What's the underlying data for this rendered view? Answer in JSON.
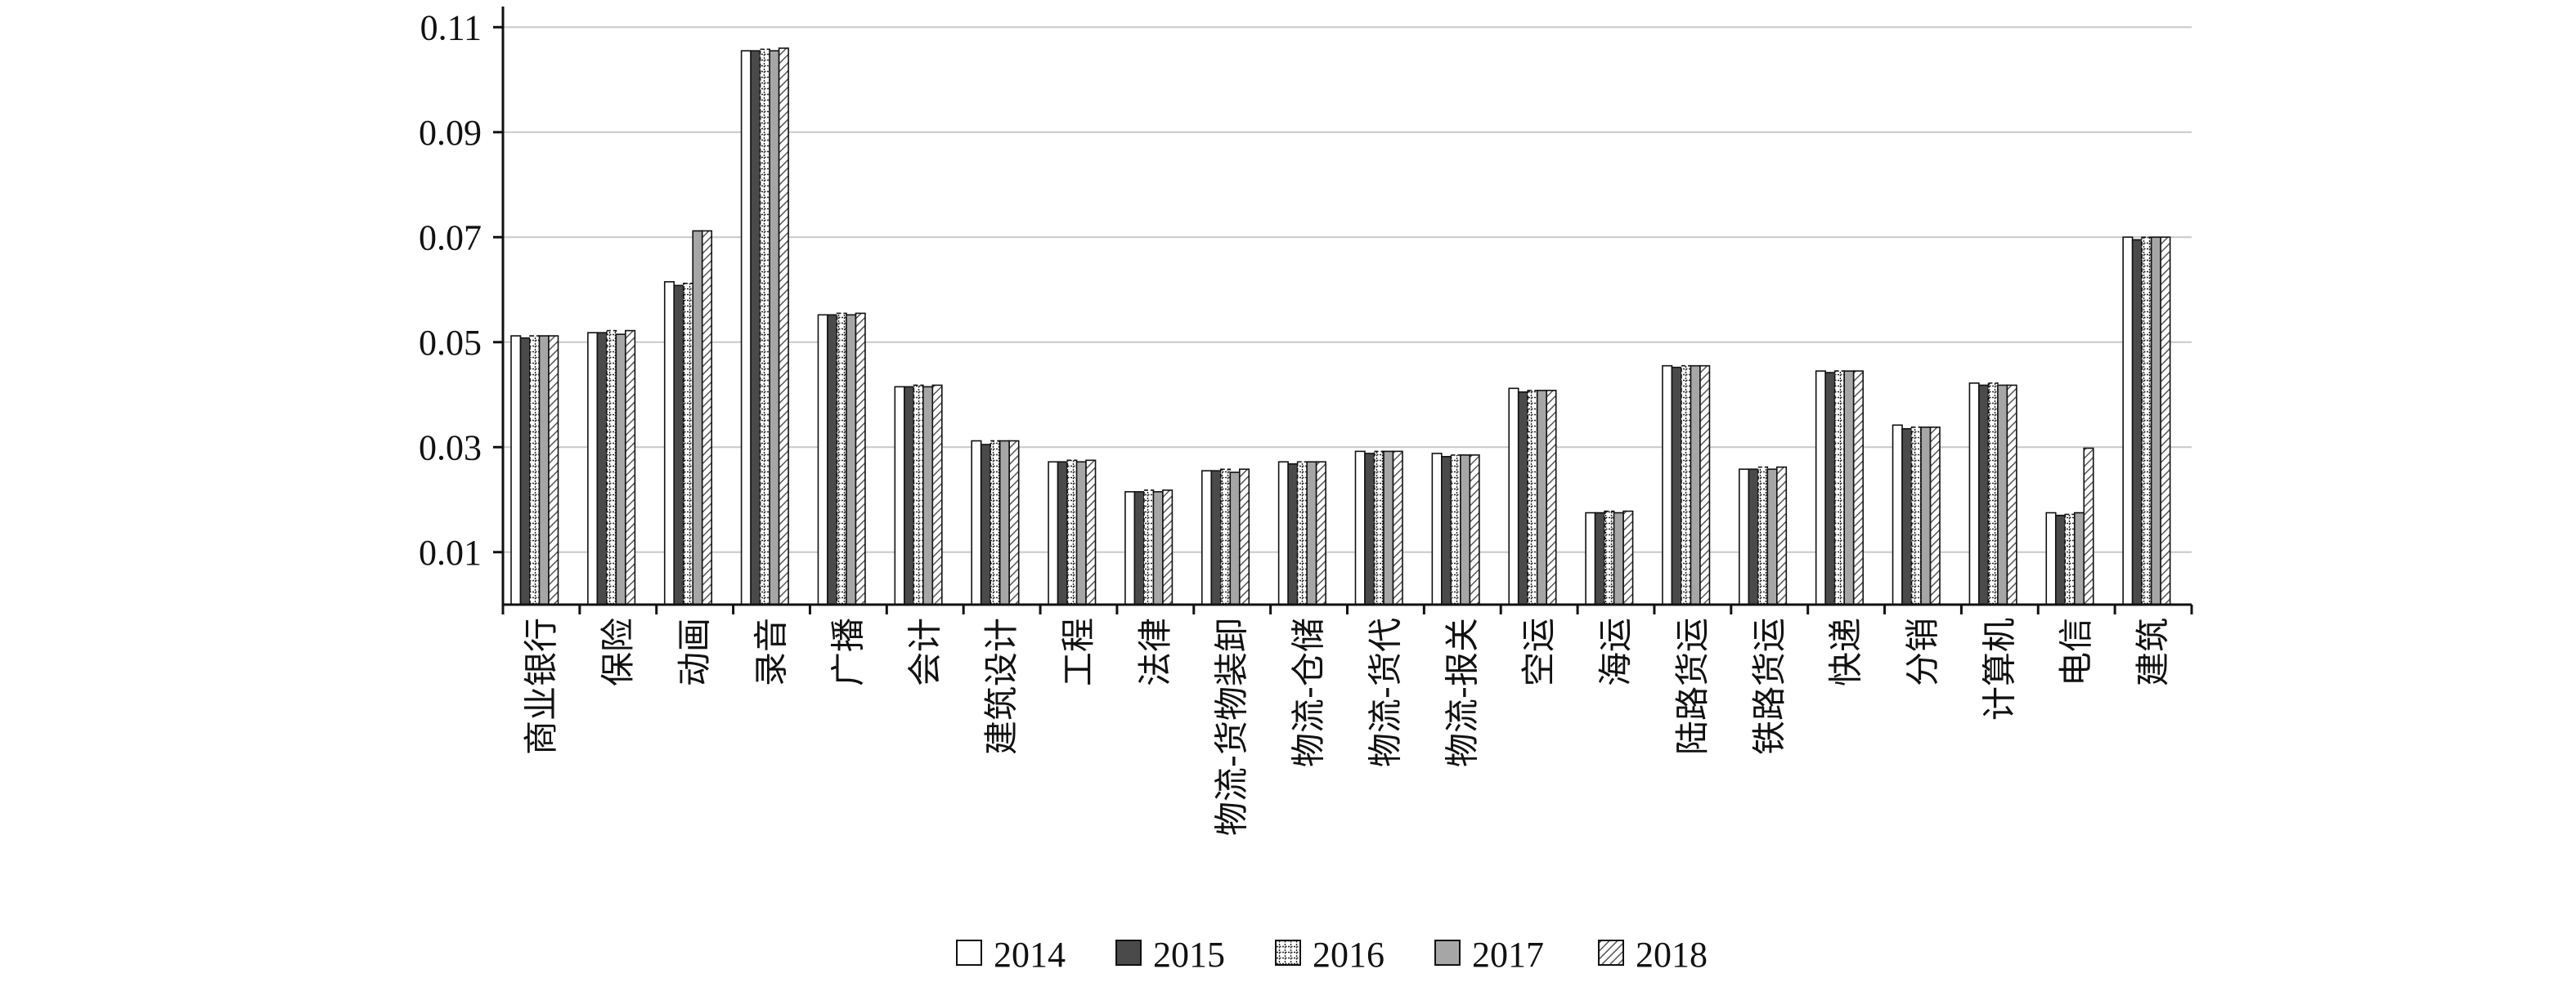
{
  "chart_data": {
    "type": "bar",
    "title": "",
    "xlabel": "",
    "ylabel": "",
    "ylim": [
      0,
      0.113
    ],
    "yticks": [
      "0.01",
      "0.03",
      "0.05",
      "0.07",
      "0.09",
      "0.11"
    ],
    "ytick_values": [
      0.01,
      0.03,
      0.05,
      0.07,
      0.09,
      0.11
    ],
    "grid": "horizontal",
    "legend_position": "bottom",
    "categories": [
      "商业银行",
      "保险",
      "动画",
      "录音",
      "广播",
      "会计",
      "建筑设计",
      "工程",
      "法律",
      "物流-货物装卸",
      "物流-仓储",
      "物流-货代",
      "物流-报关",
      "空运",
      "海运",
      "陆路货运",
      "铁路货运",
      "快递",
      "分销",
      "计算机",
      "电信",
      "建筑"
    ],
    "series": [
      {
        "name": "2014",
        "values": [
          0.0512,
          0.0518,
          0.0615,
          0.1055,
          0.0552,
          0.0415,
          0.0312,
          0.0272,
          0.0215,
          0.0255,
          0.0272,
          0.0292,
          0.0288,
          0.0412,
          0.0175,
          0.0455,
          0.0258,
          0.0445,
          0.0342,
          0.0422,
          0.0175,
          0.07
        ]
      },
      {
        "name": "2015",
        "values": [
          0.0508,
          0.0518,
          0.0608,
          0.1055,
          0.0552,
          0.0415,
          0.0305,
          0.0272,
          0.0215,
          0.0255,
          0.0268,
          0.0288,
          0.0282,
          0.0405,
          0.0175,
          0.0452,
          0.0258,
          0.0442,
          0.0335,
          0.0418,
          0.017,
          0.0695
        ]
      },
      {
        "name": "2016",
        "values": [
          0.0512,
          0.0522,
          0.0612,
          0.1058,
          0.0555,
          0.0418,
          0.0312,
          0.0275,
          0.0218,
          0.0258,
          0.0272,
          0.0292,
          0.0285,
          0.0408,
          0.0178,
          0.0455,
          0.0262,
          0.0445,
          0.0338,
          0.0422,
          0.0172,
          0.07
        ]
      },
      {
        "name": "2017",
        "values": [
          0.0512,
          0.0515,
          0.0712,
          0.1055,
          0.0552,
          0.0415,
          0.0312,
          0.0272,
          0.0215,
          0.0252,
          0.0272,
          0.0292,
          0.0285,
          0.0408,
          0.0175,
          0.0455,
          0.0258,
          0.0445,
          0.0338,
          0.0418,
          0.0175,
          0.07
        ]
      },
      {
        "name": "2018",
        "values": [
          0.0512,
          0.0522,
          0.0712,
          0.106,
          0.0555,
          0.0418,
          0.0312,
          0.0275,
          0.0218,
          0.0258,
          0.0272,
          0.0292,
          0.0285,
          0.0408,
          0.0178,
          0.0455,
          0.0262,
          0.0445,
          0.0338,
          0.0418,
          0.0298,
          0.07
        ]
      }
    ],
    "series_styles": [
      {
        "fill": "#ffffff",
        "pattern": "none"
      },
      {
        "fill": "#4a4a4a",
        "pattern": "none"
      },
      {
        "fill": "#ffffff",
        "pattern": "dashed-cross"
      },
      {
        "fill": "#a6a6a6",
        "pattern": "none"
      },
      {
        "fill": "#ffffff",
        "pattern": "diagonal"
      }
    ],
    "colors": {
      "axis": "#111111",
      "grid": "#c8c8c8",
      "bar_edge": "#111111"
    }
  }
}
